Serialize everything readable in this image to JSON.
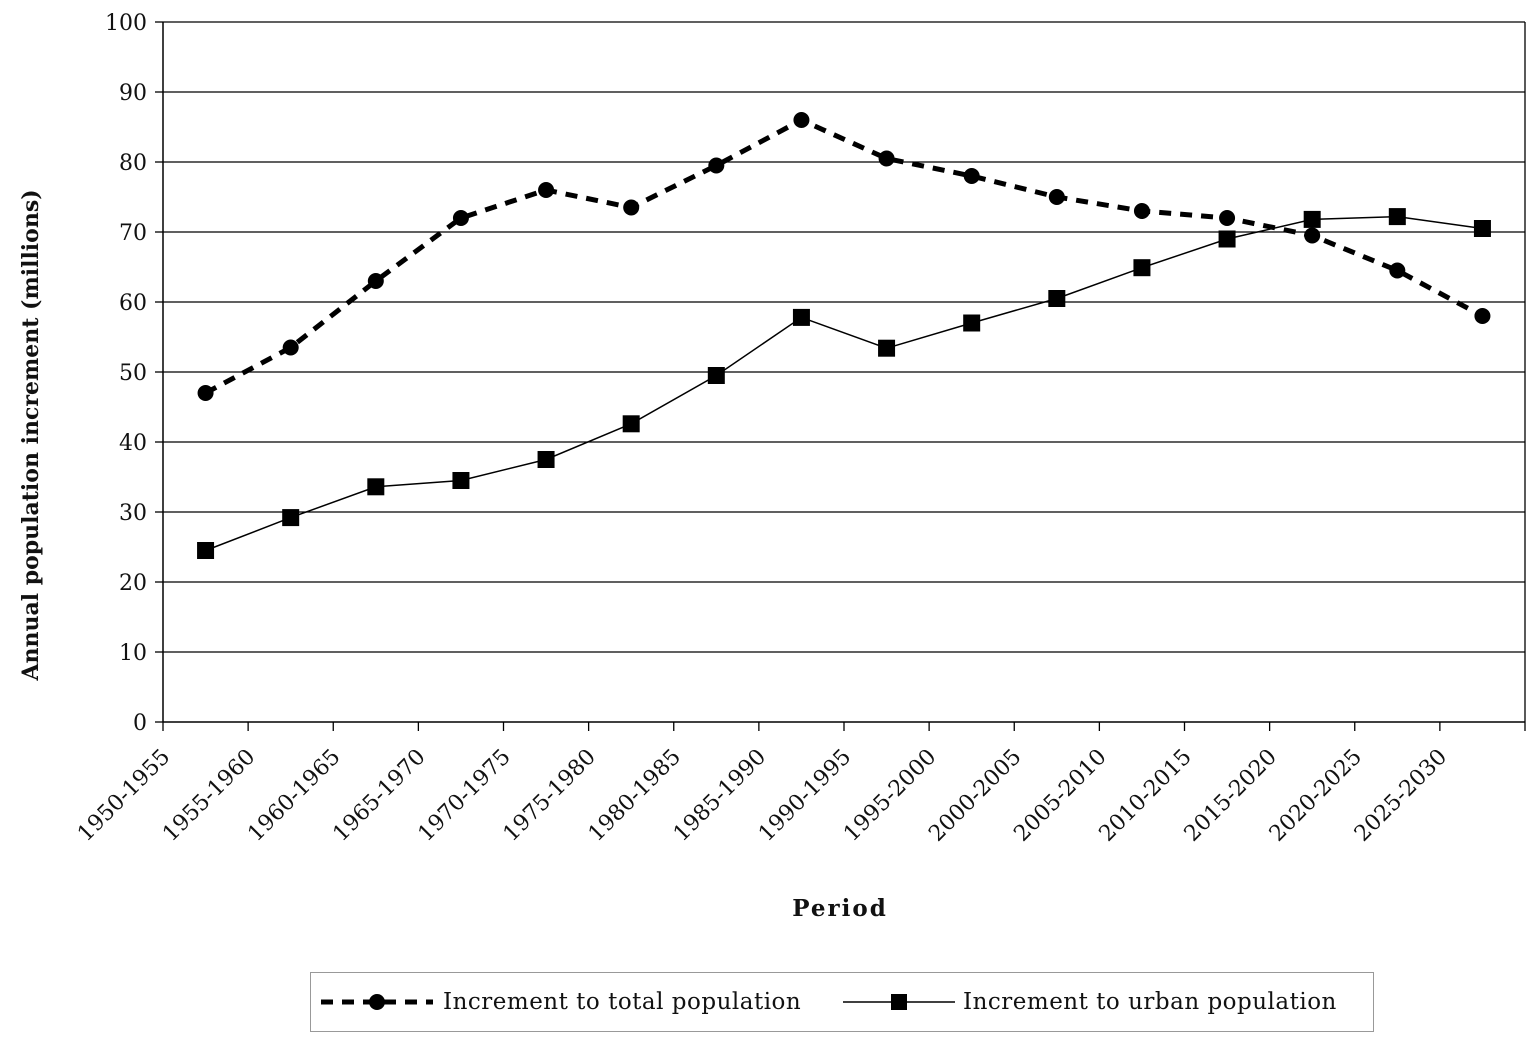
{
  "chart_data": {
    "type": "line",
    "title": "",
    "xlabel": "Period",
    "ylabel": "Annual population increment (millions)",
    "ylim": [
      0,
      100
    ],
    "yticks": [
      0,
      10,
      20,
      30,
      40,
      50,
      60,
      70,
      80,
      90,
      100
    ],
    "grid": "horizontal",
    "legend_position": "bottom",
    "categories": [
      "1950-1955",
      "1955-1960",
      "1960-1965",
      "1965-1970",
      "1970-1975",
      "1975-1980",
      "1980-1985",
      "1985-1990",
      "1990-1995",
      "1995-2000",
      "2000-2005",
      "2005-2010",
      "2010-2015",
      "2015-2020",
      "2020-2025",
      "2025-2030"
    ],
    "series": [
      {
        "name": "Increment to total population",
        "style": "dashed",
        "marker": "circle",
        "color": "#000000",
        "values": [
          47,
          53.5,
          63,
          72,
          76,
          73.5,
          79.5,
          86,
          80.5,
          78,
          75,
          73,
          72,
          69.5,
          64.5,
          58
        ]
      },
      {
        "name": "Increment to urban population",
        "style": "solid",
        "marker": "square",
        "color": "#000000",
        "values": [
          24.5,
          29.2,
          33.6,
          34.5,
          37.5,
          42.6,
          49.5,
          57.8,
          53.4,
          57,
          60.5,
          64.9,
          69,
          71.8,
          72.2,
          70.5
        ]
      }
    ]
  }
}
